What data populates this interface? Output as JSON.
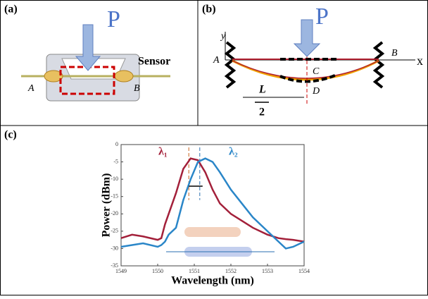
{
  "panel_a": {
    "label": "(a)",
    "force": "P",
    "sensor": "Sensor",
    "end_a": "A",
    "end_b": "B"
  },
  "panel_b": {
    "label": "(b)",
    "force": "P",
    "y_axis": "y",
    "x_axis": "x",
    "end_a": "A",
    "end_b": "B",
    "point_c": "C",
    "point_d": "D",
    "length_num": "L",
    "length_den": "2"
  },
  "panel_c": {
    "label": "(c)"
  },
  "chart_data": {
    "type": "line",
    "x_label": "Wavelength (nm)",
    "y_label": "Power (dBm)",
    "x": [
      1549,
      1549.3,
      1549.6,
      1550,
      1550.1,
      1550.2,
      1550.3,
      1550.5,
      1550.7,
      1550.9,
      1551.1,
      1551.3,
      1551.5,
      1551.7,
      1552,
      1552.3,
      1552.6,
      1553,
      1553.3,
      1553.5,
      1553.7,
      1554
    ],
    "series": [
      {
        "name": "λ₁",
        "color": "#a3203a",
        "values": [
          -27,
          -26,
          -26.5,
          -27.5,
          -27,
          -23,
          -20,
          -14,
          -7,
          -4,
          -4.5,
          -8,
          -13,
          -17,
          -20,
          -22,
          -24,
          -26,
          -27,
          -27.3,
          -27.5,
          -28
        ]
      },
      {
        "name": "λ₂",
        "color": "#2a86c8",
        "values": [
          -29.5,
          -29,
          -28.5,
          -29.5,
          -29,
          -28,
          -26,
          -24,
          -16,
          -10,
          -5,
          -4,
          -5,
          -8,
          -13,
          -17,
          -21,
          -25,
          -28,
          -30,
          -29.5,
          -28
        ]
      }
    ],
    "markers": [
      {
        "x": 1550.85,
        "color": "#c8641e"
      },
      {
        "x": 1551.15,
        "color": "#2a6fb0"
      }
    ],
    "xlim": [
      1549,
      1554
    ],
    "xticks": [
      1549,
      1550,
      1551,
      1552,
      1553,
      1554
    ],
    "ylim": [
      -35,
      0
    ],
    "yticks": [
      -35,
      -30,
      -25,
      -20,
      -15,
      -10,
      -5,
      0
    ]
  }
}
